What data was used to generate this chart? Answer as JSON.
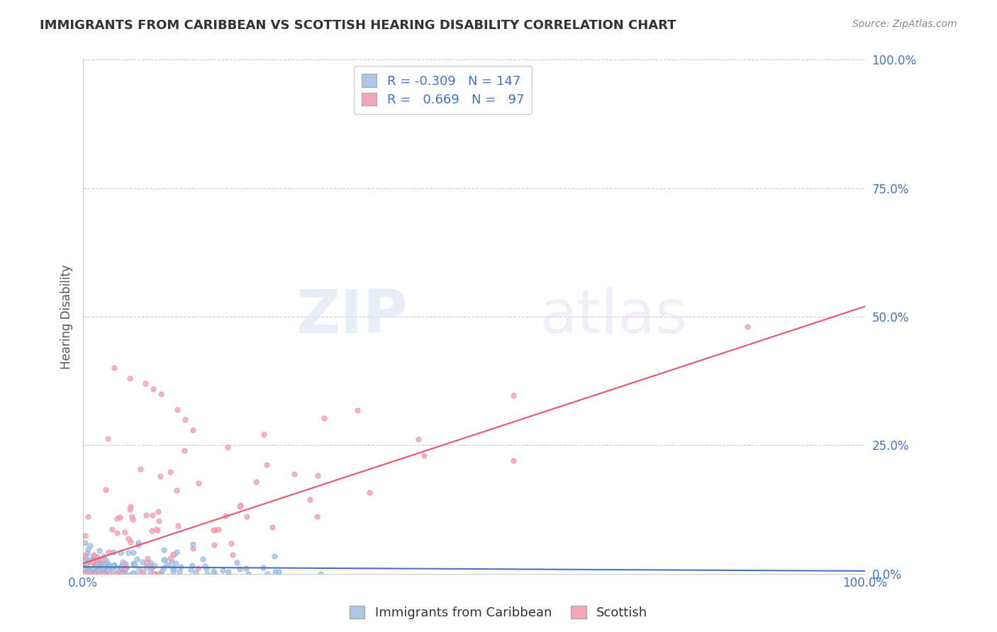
{
  "title": "IMMIGRANTS FROM CARIBBEAN VS SCOTTISH HEARING DISABILITY CORRELATION CHART",
  "source": "Source: ZipAtlas.com",
  "ylabel": "Hearing Disability",
  "legend_items": [
    {
      "label": "Immigrants from Caribbean",
      "color": "#aec6e8",
      "R": "-0.309",
      "N": "147"
    },
    {
      "label": "Scottish",
      "color": "#f4a7b9",
      "R": " 0.669",
      "N": " 97"
    }
  ],
  "xlim": [
    0,
    1
  ],
  "ylim": [
    0,
    1
  ],
  "background_color": "#ffffff",
  "grid_color": "#cccccc",
  "title_color": "#333333",
  "axis_label_color": "#4472c4",
  "watermark_zip": "ZIP",
  "watermark_atlas": "atlas",
  "blue_scatter_color": "#aec6e8",
  "pink_scatter_color": "#f4a7b9",
  "blue_line_color": "#4472c4",
  "pink_line_color": "#e8546a",
  "blue_marker_edge": "#7aaad0",
  "pink_marker_edge": "#e8879a"
}
